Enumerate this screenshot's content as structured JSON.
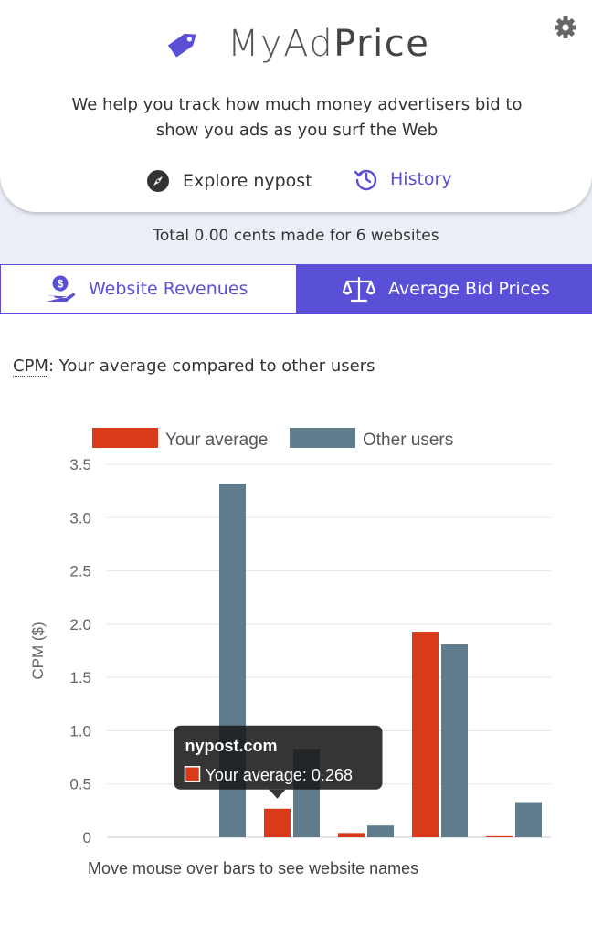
{
  "header": {
    "brand_part1": "MyAd",
    "brand_part2": "Price",
    "tagline": "We help you track how much money advertisers bid to show you ads as you surf the Web",
    "explore_label": "Explore nypost",
    "history_label": "History",
    "settings_icon": "gear-icon",
    "logo_icon": "price-tag-icon"
  },
  "summary": {
    "total_text": "Total 0.00 cents made for 6 websites"
  },
  "tabs": [
    {
      "label": "Website Revenues",
      "icon": "hand-coin-icon",
      "active": false
    },
    {
      "label": "Average Bid Prices",
      "icon": "scale-icon",
      "active": true
    }
  ],
  "cpm_intro": {
    "abbr": "CPM",
    "rest": ": Your average compared to other users"
  },
  "chart_data": {
    "type": "bar",
    "ylabel": "CPM ($)",
    "ylim": [
      0,
      3.5
    ],
    "yticks": [
      "0",
      "0.5",
      "1.0",
      "1.5",
      "2.0",
      "2.5",
      "3.0",
      "3.5"
    ],
    "grid": true,
    "legend_position": "top",
    "categories": [
      "",
      "",
      "",
      "",
      "",
      ""
    ],
    "series": [
      {
        "name": "Your average",
        "color": "#d93b1a",
        "values": [
          0,
          0,
          0.268,
          0.04,
          1.93,
          0.01
        ]
      },
      {
        "name": "Other users",
        "color": "#5f7d8c",
        "values": [
          0,
          3.32,
          0.83,
          0.11,
          1.81,
          0.33
        ]
      }
    ],
    "tooltip": {
      "title": "nypost.com",
      "series_label": "Your average",
      "value_text": "0.268",
      "category_index": 2
    }
  },
  "footer_note": "Move mouse over bars to see website names"
}
